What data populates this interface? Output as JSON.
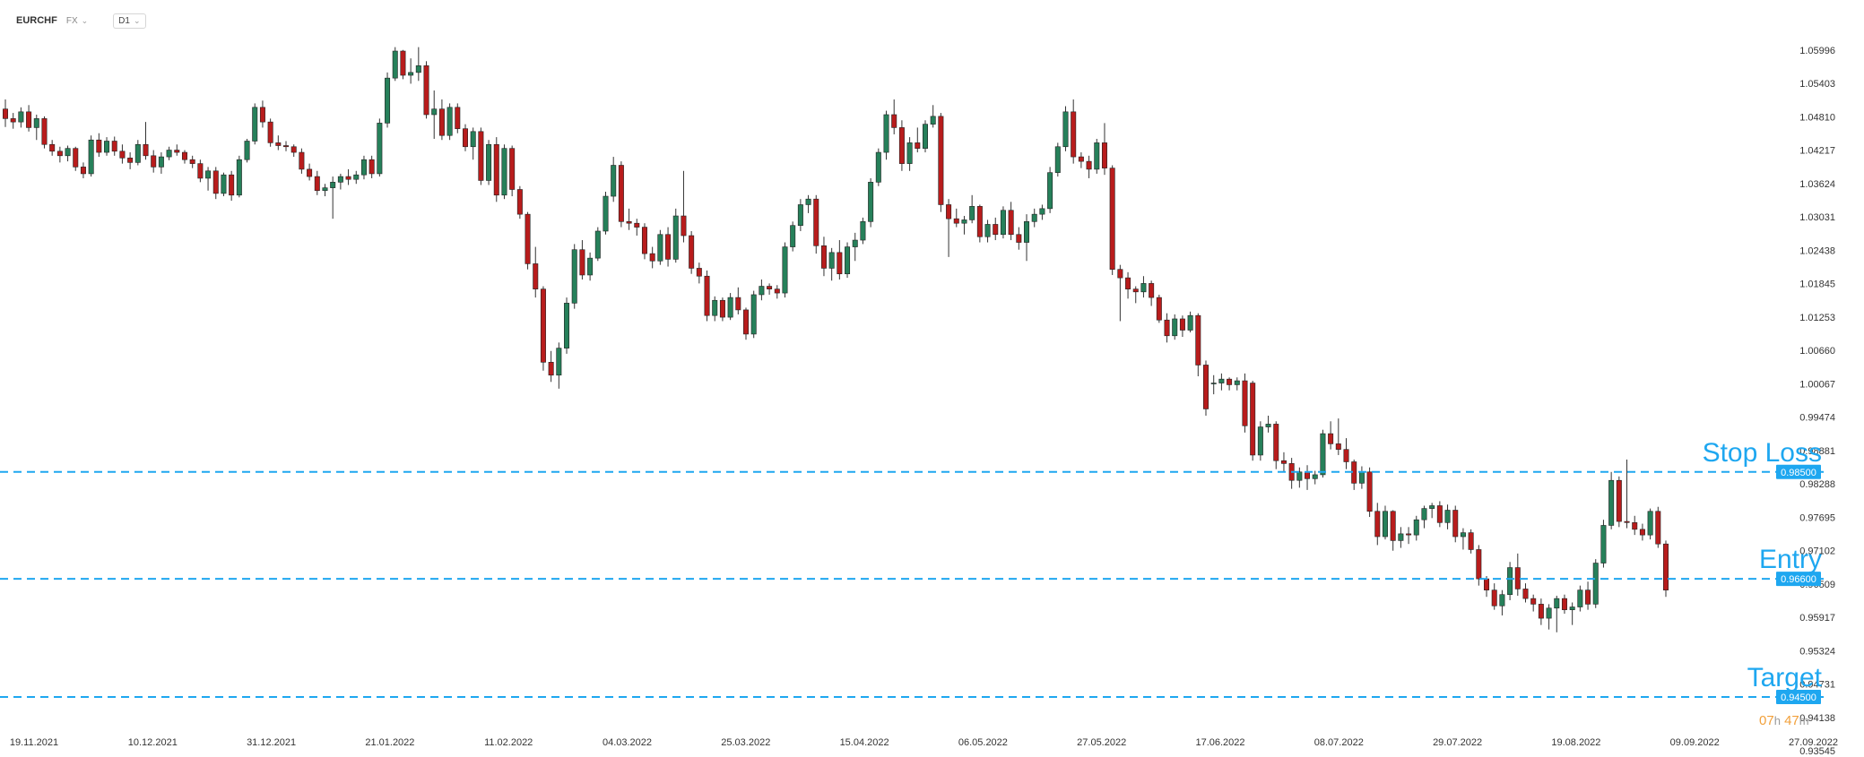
{
  "toolbar": {
    "symbol": "EURCHF",
    "market": "FX",
    "timeframe": "D1"
  },
  "timer": {
    "hours": "07",
    "hours_unit": "h",
    "minutes": "47",
    "minutes_unit": "m"
  },
  "colors": {
    "up": "#26805a",
    "down": "#b81c1c",
    "level": "#1ea7f0",
    "wick": "#333333"
  },
  "chart_data": {
    "type": "candlestick",
    "symbol": "EURCHF",
    "interval": "D1",
    "y_ticks": [
      "1.05996",
      "1.05403",
      "1.04810",
      "1.04217",
      "1.03624",
      "1.03031",
      "1.02438",
      "1.01845",
      "1.01253",
      "1.00660",
      "1.00067",
      "0.99474",
      "0.98881",
      "0.98288",
      "0.97695",
      "0.97102",
      "0.96509",
      "0.95917",
      "0.95324",
      "0.94731",
      "0.94138",
      "0.93545"
    ],
    "ylim": [
      0.93545,
      1.05996
    ],
    "x_ticks": [
      "19.11.2021",
      "10.12.2021",
      "31.12.2021",
      "21.01.2022",
      "11.02.2022",
      "04.03.2022",
      "25.03.2022",
      "15.04.2022",
      "06.05.2022",
      "27.05.2022",
      "17.06.2022",
      "08.07.2022",
      "29.07.2022",
      "19.08.2022",
      "09.09.2022",
      "27.09.2022"
    ],
    "levels": [
      {
        "label": "Stop Loss",
        "value": 0.985,
        "tag": "0.98500"
      },
      {
        "label": "Entry",
        "value": 0.966,
        "tag": "0.96600"
      },
      {
        "label": "Target",
        "value": 0.945,
        "tag": "0.94500"
      }
    ],
    "candles": [
      [
        1.0495,
        1.0512,
        1.0463,
        1.0478
      ],
      [
        1.0478,
        1.0488,
        1.046,
        1.0472
      ],
      [
        1.0472,
        1.0498,
        1.0462,
        1.049
      ],
      [
        1.049,
        1.0502,
        1.0455,
        1.0462
      ],
      [
        1.0462,
        1.0485,
        1.044,
        1.0478
      ],
      [
        1.0478,
        1.0482,
        1.0425,
        1.0432
      ],
      [
        1.0432,
        1.044,
        1.0412,
        1.042
      ],
      [
        1.042,
        1.0428,
        1.04,
        1.0412
      ],
      [
        1.0412,
        1.043,
        1.0402,
        1.0425
      ],
      [
        1.0425,
        1.0428,
        1.0385,
        1.0392
      ],
      [
        1.0392,
        1.04,
        1.0372,
        1.038
      ],
      [
        1.038,
        1.0448,
        1.0375,
        1.044
      ],
      [
        1.044,
        1.0452,
        1.041,
        1.0418
      ],
      [
        1.0418,
        1.0445,
        1.0412,
        1.0438
      ],
      [
        1.0438,
        1.0446,
        1.0412,
        1.042
      ],
      [
        1.042,
        1.0432,
        1.0398,
        1.0408
      ],
      [
        1.0408,
        1.0418,
        1.0388,
        1.04
      ],
      [
        1.04,
        1.044,
        1.0395,
        1.0432
      ],
      [
        1.0432,
        1.0472,
        1.0405,
        1.0412
      ],
      [
        1.0412,
        1.0422,
        1.0382,
        1.0392
      ],
      [
        1.0392,
        1.0418,
        1.038,
        1.041
      ],
      [
        1.041,
        1.0428,
        1.0404,
        1.0422
      ],
      [
        1.0422,
        1.0432,
        1.0412,
        1.0418
      ],
      [
        1.0418,
        1.0422,
        1.0398,
        1.0405
      ],
      [
        1.0405,
        1.0412,
        1.039,
        1.0398
      ],
      [
        1.0398,
        1.0405,
        1.0365,
        1.0372
      ],
      [
        1.0372,
        1.0392,
        1.035,
        1.0385
      ],
      [
        1.0385,
        1.0392,
        1.0335,
        1.0345
      ],
      [
        1.0345,
        1.0382,
        1.034,
        1.0378
      ],
      [
        1.0378,
        1.0385,
        1.0332,
        1.0342
      ],
      [
        1.0342,
        1.0412,
        1.0338,
        1.0405
      ],
      [
        1.0405,
        1.0442,
        1.04,
        1.0438
      ],
      [
        1.0438,
        1.0505,
        1.0432,
        1.0498
      ],
      [
        1.0498,
        1.051,
        1.0462,
        1.0472
      ],
      [
        1.0472,
        1.0478,
        1.0428,
        1.0435
      ],
      [
        1.0435,
        1.0448,
        1.0422,
        1.043
      ],
      [
        1.043,
        1.0438,
        1.042,
        1.0428
      ],
      [
        1.0428,
        1.0432,
        1.041,
        1.0418
      ],
      [
        1.0418,
        1.0425,
        1.038,
        1.0388
      ],
      [
        1.0388,
        1.0398,
        1.0368,
        1.0375
      ],
      [
        1.0375,
        1.0385,
        1.0342,
        1.035
      ],
      [
        1.035,
        1.0362,
        1.034,
        1.0355
      ],
      [
        1.0355,
        1.0375,
        1.03,
        1.0365
      ],
      [
        1.0365,
        1.038,
        1.0352,
        1.0375
      ],
      [
        1.0375,
        1.0388,
        1.036,
        1.037
      ],
      [
        1.037,
        1.0385,
        1.0362,
        1.0378
      ],
      [
        1.0378,
        1.0412,
        1.037,
        1.0405
      ],
      [
        1.0405,
        1.0412,
        1.0372,
        1.038
      ],
      [
        1.038,
        1.0478,
        1.0375,
        1.047
      ],
      [
        1.047,
        1.056,
        1.0462,
        1.055
      ],
      [
        1.055,
        1.0605,
        1.0545,
        1.0598
      ],
      [
        1.0598,
        1.06,
        1.0548,
        1.0555
      ],
      [
        1.0555,
        1.0585,
        1.054,
        1.056
      ],
      [
        1.056,
        1.0605,
        1.0545,
        1.0572
      ],
      [
        1.0572,
        1.058,
        1.0478,
        1.0485
      ],
      [
        1.0485,
        1.0528,
        1.0442,
        1.0495
      ],
      [
        1.0495,
        1.0512,
        1.044,
        1.0448
      ],
      [
        1.0448,
        1.0505,
        1.044,
        1.0498
      ],
      [
        1.0498,
        1.0505,
        1.0452,
        1.046
      ],
      [
        1.046,
        1.0468,
        1.042,
        1.0428
      ],
      [
        1.0428,
        1.0462,
        1.0405,
        1.0455
      ],
      [
        1.0455,
        1.0462,
        1.036,
        1.0368
      ],
      [
        1.0368,
        1.044,
        1.036,
        1.0432
      ],
      [
        1.0432,
        1.0445,
        1.033,
        1.0342
      ],
      [
        1.0342,
        1.0432,
        1.0335,
        1.0425
      ],
      [
        1.0425,
        1.043,
        1.034,
        1.0352
      ],
      [
        1.0352,
        1.0358,
        1.03,
        1.0308
      ],
      [
        1.0308,
        1.0312,
        1.021,
        1.022
      ],
      [
        1.022,
        1.025,
        1.016,
        1.0175
      ],
      [
        1.0175,
        1.018,
        1.003,
        1.0045
      ],
      [
        1.0045,
        1.0065,
        1.001,
        1.0022
      ],
      [
        1.0022,
        1.008,
        0.9998,
        1.007
      ],
      [
        1.007,
        1.016,
        1.006,
        1.015
      ],
      [
        1.015,
        1.0255,
        1.014,
        1.0245
      ],
      [
        1.0245,
        1.0262,
        1.0192,
        1.02
      ],
      [
        1.02,
        1.024,
        1.019,
        1.023
      ],
      [
        1.023,
        1.0285,
        1.0225,
        1.0278
      ],
      [
        1.0278,
        1.0348,
        1.0272,
        1.034
      ],
      [
        1.034,
        1.041,
        1.033,
        1.0395
      ],
      [
        1.0395,
        1.0402,
        1.0285,
        1.0295
      ],
      [
        1.0295,
        1.0318,
        1.028,
        1.0292
      ],
      [
        1.0292,
        1.03,
        1.027,
        1.0285
      ],
      [
        1.0285,
        1.0292,
        1.0228,
        1.0238
      ],
      [
        1.0238,
        1.025,
        1.0212,
        1.0225
      ],
      [
        1.0225,
        1.028,
        1.0218,
        1.0272
      ],
      [
        1.0272,
        1.0285,
        1.0215,
        1.0228
      ],
      [
        1.0228,
        1.0318,
        1.0222,
        1.0305
      ],
      [
        1.0305,
        1.0385,
        1.0258,
        1.027
      ],
      [
        1.027,
        1.0278,
        1.0202,
        1.0212
      ],
      [
        1.0212,
        1.0222,
        1.0185,
        1.0198
      ],
      [
        1.0198,
        1.0208,
        1.0118,
        1.0128
      ],
      [
        1.0128,
        1.0162,
        1.0118,
        1.0155
      ],
      [
        1.0155,
        1.016,
        1.0118,
        1.0125
      ],
      [
        1.0125,
        1.0168,
        1.012,
        1.016
      ],
      [
        1.016,
        1.0178,
        1.013,
        1.0138
      ],
      [
        1.0138,
        1.0142,
        1.0085,
        1.0095
      ],
      [
        1.0095,
        1.0172,
        1.0088,
        1.0165
      ],
      [
        1.0165,
        1.0192,
        1.0155,
        1.018
      ],
      [
        1.018,
        1.0185,
        1.0165,
        1.0175
      ],
      [
        1.0175,
        1.0182,
        1.0158,
        1.0168
      ],
      [
        1.0168,
        1.0258,
        1.016,
        1.025
      ],
      [
        1.025,
        1.0295,
        1.0242,
        1.0288
      ],
      [
        1.0288,
        1.0335,
        1.0278,
        1.0325
      ],
      [
        1.0325,
        1.0342,
        1.031,
        1.0335
      ],
      [
        1.0335,
        1.0342,
        1.0238,
        1.0252
      ],
      [
        1.0252,
        1.0268,
        1.0198,
        1.0212
      ],
      [
        1.0212,
        1.0248,
        1.019,
        1.024
      ],
      [
        1.024,
        1.0262,
        1.0192,
        1.0202
      ],
      [
        1.0202,
        1.0258,
        1.0195,
        1.025
      ],
      [
        1.025,
        1.0275,
        1.0225,
        1.0262
      ],
      [
        1.0262,
        1.0302,
        1.0255,
        1.0295
      ],
      [
        1.0295,
        1.0372,
        1.0285,
        1.0365
      ],
      [
        1.0365,
        1.0425,
        1.0358,
        1.0418
      ],
      [
        1.0418,
        1.0492,
        1.0405,
        1.0485
      ],
      [
        1.0485,
        1.0512,
        1.045,
        1.0462
      ],
      [
        1.0462,
        1.0475,
        1.0385,
        1.0398
      ],
      [
        1.0398,
        1.0445,
        1.0385,
        1.0435
      ],
      [
        1.0435,
        1.0462,
        1.0418,
        1.0425
      ],
      [
        1.0425,
        1.0475,
        1.0418,
        1.0468
      ],
      [
        1.0468,
        1.0502,
        1.0462,
        1.0482
      ],
      [
        1.0482,
        1.0488,
        1.0312,
        1.0325
      ],
      [
        1.0325,
        1.0335,
        1.0232,
        1.03
      ],
      [
        1.03,
        1.0318,
        1.0285,
        1.0292
      ],
      [
        1.0292,
        1.0305,
        1.0272,
        1.0298
      ],
      [
        1.0298,
        1.0342,
        1.0292,
        1.0322
      ],
      [
        1.0322,
        1.0325,
        1.0258,
        1.0268
      ],
      [
        1.0268,
        1.0298,
        1.0258,
        1.029
      ],
      [
        1.029,
        1.0302,
        1.0262,
        1.0272
      ],
      [
        1.0272,
        1.0322,
        1.0265,
        1.0315
      ],
      [
        1.0315,
        1.033,
        1.0262,
        1.0272
      ],
      [
        1.0272,
        1.0285,
        1.0245,
        1.0258
      ],
      [
        1.0258,
        1.0308,
        1.0225,
        1.0295
      ],
      [
        1.0295,
        1.0318,
        1.0285,
        1.0308
      ],
      [
        1.0308,
        1.0325,
        1.0298,
        1.0318
      ],
      [
        1.0318,
        1.0392,
        1.031,
        1.0382
      ],
      [
        1.0382,
        1.0435,
        1.0375,
        1.0428
      ],
      [
        1.0428,
        1.05,
        1.042,
        1.049
      ],
      [
        1.049,
        1.0512,
        1.0398,
        1.041
      ],
      [
        1.041,
        1.0418,
        1.039,
        1.0402
      ],
      [
        1.0402,
        1.0412,
        1.0372,
        1.0388
      ],
      [
        1.0388,
        1.0442,
        1.038,
        1.0435
      ],
      [
        1.0435,
        1.047,
        1.0378,
        1.039
      ],
      [
        1.039,
        1.0395,
        1.02,
        1.021
      ],
      [
        1.021,
        1.0218,
        1.0118,
        1.0195
      ],
      [
        1.0195,
        1.0205,
        1.0158,
        1.0175
      ],
      [
        1.0175,
        1.018,
        1.015,
        1.017
      ],
      [
        1.017,
        1.0198,
        1.016,
        1.0185
      ],
      [
        1.0185,
        1.019,
        1.0145,
        1.016
      ],
      [
        1.016,
        1.0165,
        1.0115,
        1.012
      ],
      [
        1.012,
        1.0132,
        1.008,
        1.0092
      ],
      [
        1.0092,
        1.013,
        1.0085,
        1.0122
      ],
      [
        1.0122,
        1.0128,
        1.009,
        1.0102
      ],
      [
        1.0102,
        1.0135,
        1.0098,
        1.0128
      ],
      [
        1.0128,
        1.0132,
        1.002,
        1.004
      ],
      [
        1.004,
        1.0048,
        0.995,
        0.9962
      ],
      [
        1.0008,
        1.0022,
        0.9988,
        1.0008
      ],
      [
        1.0008,
        1.0025,
        0.9995,
        1.0015
      ],
      [
        1.0015,
        1.0018,
        0.9995,
        1.0005
      ],
      [
        1.0005,
        1.0018,
        0.9995,
        1.0012
      ],
      [
        1.0012,
        1.0025,
        0.992,
        0.9932
      ],
      [
        1.0008,
        1.0012,
        0.987,
        0.988
      ],
      [
        0.988,
        0.994,
        0.987,
        0.993
      ],
      [
        0.993,
        0.995,
        0.992,
        0.9935
      ],
      [
        0.9935,
        0.994,
        0.9855,
        0.987
      ],
      [
        0.987,
        0.9885,
        0.985,
        0.9865
      ],
      [
        0.9865,
        0.9875,
        0.982,
        0.9835
      ],
      [
        0.9835,
        0.9858,
        0.9822,
        0.985
      ],
      [
        0.985,
        0.9862,
        0.9818,
        0.9838
      ],
      [
        0.9838,
        0.9852,
        0.9828,
        0.9845
      ],
      [
        0.9845,
        0.9925,
        0.984,
        0.9918
      ],
      [
        0.9918,
        0.994,
        0.989,
        0.99
      ],
      [
        0.99,
        0.9945,
        0.988,
        0.989
      ],
      [
        0.989,
        0.991,
        0.9855,
        0.9868
      ],
      [
        0.9868,
        0.9872,
        0.9818,
        0.983
      ],
      [
        0.983,
        0.986,
        0.982,
        0.985
      ],
      [
        0.985,
        0.9858,
        0.977,
        0.978
      ],
      [
        0.978,
        0.9795,
        0.972,
        0.9735
      ],
      [
        0.9735,
        0.979,
        0.973,
        0.978
      ],
      [
        0.978,
        0.9782,
        0.971,
        0.9728
      ],
      [
        0.9728,
        0.9752,
        0.9715,
        0.974
      ],
      [
        0.974,
        0.9752,
        0.9722,
        0.9738
      ],
      [
        0.9738,
        0.9772,
        0.9728,
        0.9765
      ],
      [
        0.9765,
        0.979,
        0.975,
        0.9785
      ],
      [
        0.9785,
        0.9795,
        0.9768,
        0.979
      ],
      [
        0.979,
        0.9798,
        0.9752,
        0.976
      ],
      [
        0.976,
        0.9792,
        0.9748,
        0.9782
      ],
      [
        0.9782,
        0.979,
        0.9725,
        0.9735
      ],
      [
        0.9735,
        0.975,
        0.9712,
        0.9742
      ],
      [
        0.9742,
        0.9748,
        0.9705,
        0.9712
      ],
      [
        0.9712,
        0.972,
        0.9648,
        0.966
      ],
      [
        0.966,
        0.9665,
        0.9628,
        0.964
      ],
      [
        0.964,
        0.9652,
        0.9605,
        0.9612
      ],
      [
        0.9612,
        0.964,
        0.9595,
        0.9632
      ],
      [
        0.9632,
        0.969,
        0.9622,
        0.968
      ],
      [
        0.968,
        0.9705,
        0.963,
        0.9642
      ],
      [
        0.9642,
        0.9652,
        0.9618,
        0.9625
      ],
      [
        0.9625,
        0.9632,
        0.9602,
        0.9615
      ],
      [
        0.9615,
        0.9625,
        0.9578,
        0.959
      ],
      [
        0.959,
        0.9615,
        0.957,
        0.9608
      ],
      [
        0.9608,
        0.963,
        0.9565,
        0.9625
      ],
      [
        0.9625,
        0.9632,
        0.9598,
        0.9605
      ],
      [
        0.9605,
        0.9618,
        0.9578,
        0.961
      ],
      [
        0.961,
        0.9648,
        0.9602,
        0.964
      ],
      [
        0.964,
        0.9655,
        0.9605,
        0.9615
      ],
      [
        0.9615,
        0.9695,
        0.9608,
        0.9688
      ],
      [
        0.9688,
        0.9765,
        0.968,
        0.9755
      ],
      [
        0.9755,
        0.985,
        0.9748,
        0.9835
      ],
      [
        0.9835,
        0.9842,
        0.9752,
        0.9762
      ],
      [
        0.9762,
        0.9872,
        0.975,
        0.976
      ],
      [
        0.976,
        0.9772,
        0.9738,
        0.9748
      ],
      [
        0.9748,
        0.9758,
        0.9728,
        0.9738
      ],
      [
        0.9738,
        0.9785,
        0.973,
        0.978
      ],
      [
        0.978,
        0.9788,
        0.9715,
        0.9722
      ],
      [
        0.9722,
        0.9728,
        0.9628,
        0.964
      ]
    ]
  }
}
